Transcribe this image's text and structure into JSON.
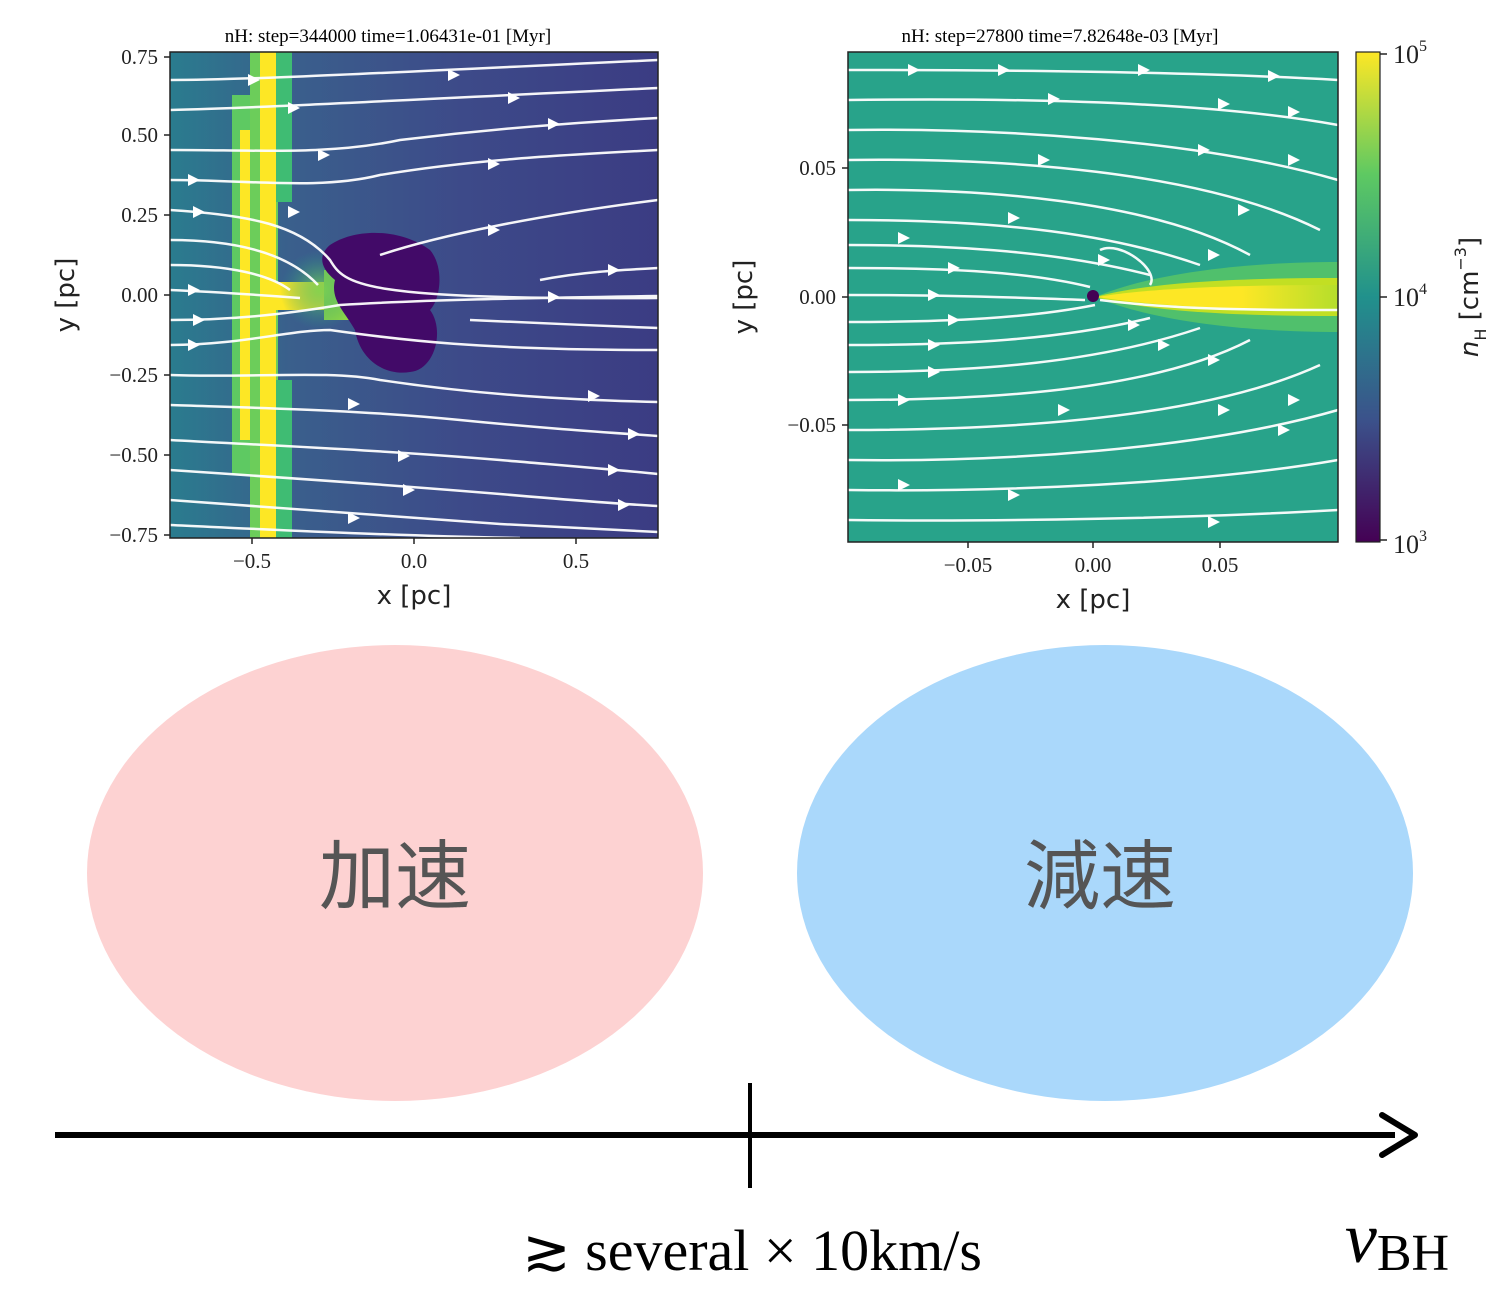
{
  "panels": [
    {
      "title": "nH: step=344000 time=1.06431e-01 [Myr]",
      "xlabel": "x [pc]",
      "ylabel": "y [pc]",
      "xticks": [
        "−0.5",
        "0.0",
        "0.5"
      ],
      "yticks": [
        "0.75",
        "0.50",
        "0.25",
        "0.00",
        "−0.25",
        "−0.50",
        "−0.75"
      ]
    },
    {
      "title": "nH: step=27800 time=7.82648e-03 [Myr]",
      "xlabel": "x [pc]",
      "ylabel": "y [pc]",
      "xticks": [
        "−0.05",
        "0.00",
        "0.05"
      ],
      "yticks": [
        "0.05",
        "0.00",
        "−0.05"
      ]
    }
  ],
  "colorbar": {
    "label": "n_H [cm^-3]",
    "ticks": [
      "10^5",
      "10^4",
      "10^3"
    ],
    "colors": [
      "#fde725",
      "#21918c",
      "#440154"
    ]
  },
  "regions": [
    {
      "label": "加速",
      "color": "#fdd2d2"
    },
    {
      "label": "減速",
      "color": "#aad8fb"
    }
  ],
  "axis": {
    "variable": "v",
    "subscript": "BH",
    "threshold": "≳ several × 10km/s"
  }
}
